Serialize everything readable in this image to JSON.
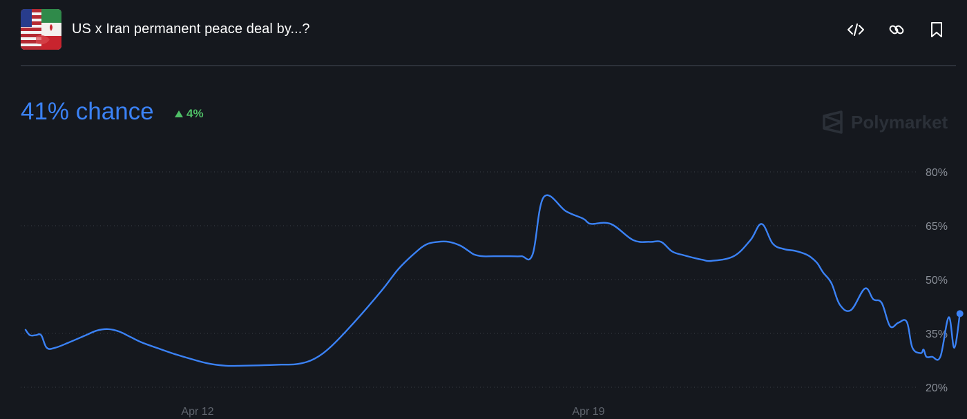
{
  "header": {
    "title": "US x Iran permanent peace deal by...?",
    "thumbnail_icon": "us-iran-flags-image",
    "actions": [
      {
        "name": "embed-icon"
      },
      {
        "name": "link-icon"
      },
      {
        "name": "bookmark-icon"
      }
    ]
  },
  "summary": {
    "chance_label": "41% chance",
    "change_label": "4%",
    "change_direction": "up",
    "watermark": "Polymarket"
  },
  "colors": {
    "background": "#15181e",
    "line": "#3b82f6",
    "positive": "#4fbf67",
    "grid": "#3a3f48",
    "axis_text": "#8a8f98"
  },
  "chart_data": {
    "type": "line",
    "y_ticks": [
      80,
      65,
      50,
      35,
      20
    ],
    "y_tick_labels": [
      "80%",
      "65%",
      "50%",
      "35%",
      "20%"
    ],
    "ylim": [
      20,
      80
    ],
    "x_tick_labels": [
      "Apr 12",
      "Apr 19"
    ],
    "x_ticks": [
      12,
      19
    ],
    "grid": "horizontal-dotted",
    "series": [
      {
        "x": [
          8.92,
          9.0,
          9.1,
          9.2,
          9.3,
          9.45,
          9.7,
          10.0,
          10.2,
          10.4,
          10.6,
          10.8,
          11.0,
          11.3,
          11.6,
          11.9,
          12.2,
          12.5,
          12.8,
          13.1,
          13.5,
          13.8,
          14.1,
          14.4,
          14.8,
          15.3,
          15.6,
          15.9,
          16.1,
          16.3,
          16.5,
          16.7,
          16.85,
          16.95,
          17.1,
          17.3,
          17.6,
          17.8,
          18.0,
          18.2,
          18.6,
          18.9,
          18.98,
          19.06,
          19.4,
          19.8,
          20.1,
          20.3,
          20.5,
          20.7,
          20.95,
          21.05,
          21.2,
          21.6,
          21.9,
          22.1,
          22.3,
          22.5,
          22.7,
          22.9,
          23.0,
          23.1,
          23.2,
          23.35,
          23.5,
          23.7,
          23.95,
          24.1,
          24.25,
          24.4,
          24.55,
          24.7,
          24.8,
          24.95,
          25.0,
          25.05,
          25.15,
          25.3,
          25.45,
          25.55,
          25.65
        ],
        "y": [
          36,
          34.5,
          34.5,
          34.5,
          31,
          31,
          32.5,
          34.5,
          35.8,
          36.2,
          35.5,
          34,
          32.5,
          30.8,
          29.2,
          27.8,
          26.6,
          26,
          26,
          26.1,
          26.3,
          26.5,
          28,
          31.5,
          38,
          47,
          53,
          57.5,
          59.8,
          60.5,
          60.5,
          59.5,
          58,
          57,
          56.5,
          56.5,
          56.5,
          56.5,
          57,
          73,
          69,
          67,
          66,
          65.5,
          65.5,
          61,
          60.5,
          60.5,
          57.8,
          56.8,
          55.8,
          55.5,
          55.2,
          56.5,
          61,
          65.5,
          60,
          58.5,
          58,
          57,
          56,
          54.5,
          52,
          49,
          43,
          41.5,
          47.5,
          44.5,
          43.5,
          37,
          38,
          38.2,
          31,
          29.5,
          30.5,
          28.5,
          28.5,
          28.5,
          39.5,
          31,
          40.5
        ]
      }
    ]
  }
}
